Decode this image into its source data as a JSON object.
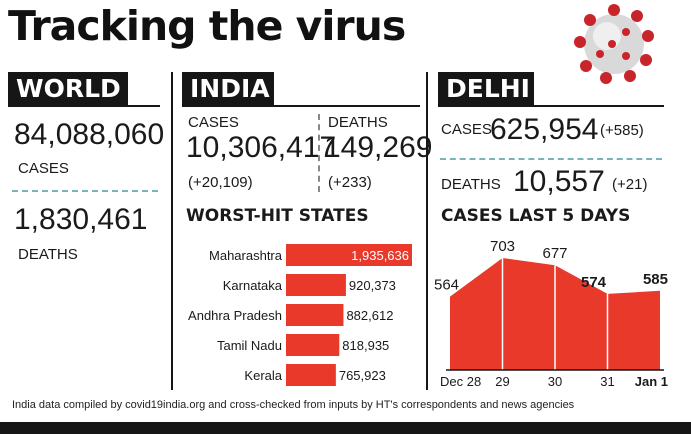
{
  "title": "Tracking the virus",
  "world": {
    "header": "WORLD",
    "cases_value": "84,088,060",
    "cases_label": "CASES",
    "deaths_value": "1,830,461",
    "deaths_label": "DEATHS"
  },
  "india": {
    "header": "INDIA",
    "cases_label": "CASES",
    "cases_value": "10,306,417",
    "cases_delta": "(+20,109)",
    "deaths_label": "DEATHS",
    "deaths_value": "149,269",
    "deaths_delta": "(+233)",
    "worst_hit_title": "WORST-HIT STATES"
  },
  "delhi": {
    "header": "DELHI",
    "cases_label": "CASES",
    "cases_value": "625,954",
    "cases_delta": "(+585)",
    "deaths_label": "DEATHS",
    "deaths_value": "10,557",
    "deaths_delta": "(+21)",
    "last5_title": "CASES LAST 5 DAYS"
  },
  "footer_note": "India data compiled by covid19india.org and cross-checked from inputs by HT's correspondents and news agencies",
  "colors": {
    "accent_red": "#e8392b",
    "ink": "#161616",
    "divider_teal": "#7bb3b8"
  },
  "icons": {
    "title_art": "coronavirus-icon"
  },
  "chart_data": [
    {
      "type": "bar",
      "orientation": "horizontal",
      "title": "WORST-HIT STATES",
      "categories": [
        "Maharashtra",
        "Karnataka",
        "Andhra Pradesh",
        "Tamil Nadu",
        "Kerala"
      ],
      "values": [
        1935636,
        920373,
        882612,
        818935,
        765923
      ],
      "value_labels": [
        "1,935,636",
        "920,373",
        "882,612",
        "818,935",
        "765,923"
      ]
    },
    {
      "type": "area",
      "title": "CASES LAST 5 DAYS",
      "categories": [
        "Dec 28",
        "29",
        "30",
        "31",
        "Jan 1"
      ],
      "values": [
        564,
        703,
        677,
        574,
        585
      ],
      "value_labels": [
        "564",
        "703",
        "677",
        "574",
        "585"
      ]
    }
  ]
}
